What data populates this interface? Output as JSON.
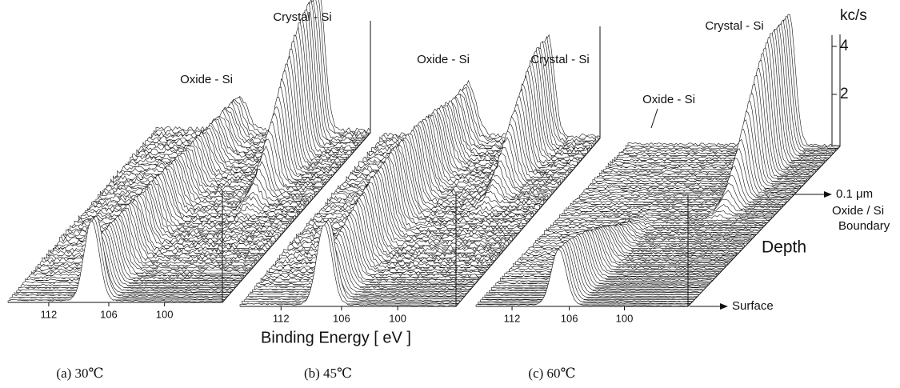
{
  "panels": [
    {
      "caption": "(a) 30℃",
      "x_ticks": [
        112,
        106,
        100
      ],
      "peak_labels": [
        "Oxide - Si",
        "Crystal - Si"
      ]
    },
    {
      "caption": "(b) 45℃",
      "x_ticks": [
        112,
        106,
        100
      ],
      "peak_labels": [
        "Oxide - Si",
        "Crystal - Si"
      ]
    },
    {
      "caption": "(c) 60℃",
      "x_ticks": [
        112,
        106,
        100
      ],
      "peak_labels": [
        "Oxide - Si",
        "Crystal - Si"
      ]
    }
  ],
  "x_axis_label": "Binding Energy  [ eV ]",
  "intensity_axis": {
    "unit": "kc/s",
    "ticks": [
      4,
      2
    ]
  },
  "depth_axis": {
    "label": "Depth",
    "end_label": "0.1 μm",
    "boundary_label_1": "Oxide / Si",
    "boundary_label_2": "Boundary",
    "start_label": "Surface"
  }
}
